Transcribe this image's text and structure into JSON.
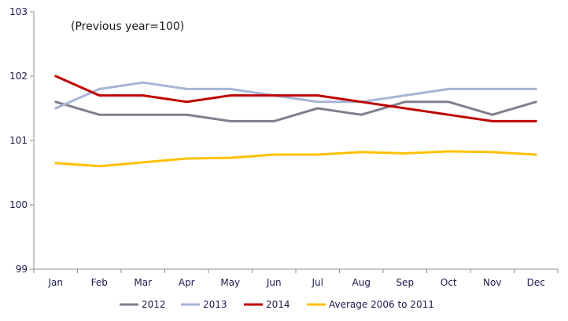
{
  "chart_data": {
    "type": "line",
    "title": "",
    "annotation": "(Previous year=100)",
    "xlabel": "",
    "ylabel": "",
    "categories": [
      "Jan",
      "Feb",
      "Mar",
      "Apr",
      "May",
      "Jun",
      "Jul",
      "Aug",
      "Sep",
      "Oct",
      "Nov",
      "Dec"
    ],
    "ylim": [
      99,
      103
    ],
    "yticks": [
      "99",
      "100",
      "101",
      "102",
      "103"
    ],
    "grid": false,
    "legend_position": "bottom",
    "series": [
      {
        "name": "2012",
        "color": "#7f7f8c",
        "values": [
          101.6,
          101.4,
          101.4,
          101.4,
          101.3,
          101.3,
          101.5,
          101.4,
          101.6,
          101.6,
          101.4,
          101.6
        ]
      },
      {
        "name": "2013",
        "color": "#a6b4d6",
        "values": [
          101.5,
          101.8,
          101.9,
          101.8,
          101.8,
          101.7,
          101.6,
          101.6,
          101.7,
          101.8,
          101.8,
          101.8
        ]
      },
      {
        "name": "2014",
        "color": "#c00000",
        "values": [
          102.0,
          101.7,
          101.7,
          101.6,
          101.7,
          101.7,
          101.7,
          101.6,
          101.5,
          101.4,
          101.3,
          101.3
        ]
      },
      {
        "name": "Average 2006 to 2011",
        "color": "#ffc000",
        "values": [
          100.65,
          100.6,
          100.66,
          100.72,
          100.73,
          100.78,
          100.78,
          100.82,
          100.8,
          100.83,
          100.82,
          100.78
        ]
      }
    ]
  }
}
